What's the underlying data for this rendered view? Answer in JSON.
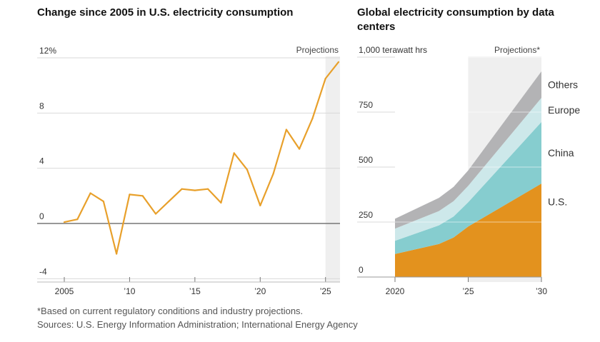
{
  "chart_data": [
    {
      "type": "line",
      "title": "Change since 2005 in U.S. electricity consumption",
      "projection_label": "Projections",
      "projection_start": 2025,
      "xlim": [
        2005,
        2026
      ],
      "ylim": [
        -4,
        12
      ],
      "y_ticks": [
        {
          "value": 12,
          "label": "12%"
        },
        {
          "value": 8,
          "label": "8"
        },
        {
          "value": 4,
          "label": "4"
        },
        {
          "value": 0,
          "label": "0"
        },
        {
          "value": -4,
          "label": "-4"
        }
      ],
      "x_ticks": [
        {
          "value": 2005,
          "label": "2005"
        },
        {
          "value": 2010,
          "label": "’10"
        },
        {
          "value": 2015,
          "label": "’15"
        },
        {
          "value": 2020,
          "label": "’20"
        },
        {
          "value": 2025,
          "label": "’25"
        }
      ],
      "series": [
        {
          "color": "#e8a02b",
          "x": [
            2005,
            2006,
            2007,
            2008,
            2009,
            2010,
            2011,
            2012,
            2013,
            2014,
            2015,
            2016,
            2017,
            2018,
            2019,
            2020,
            2021,
            2022,
            2023,
            2024,
            2025,
            2026
          ],
          "values": [
            0.1,
            0.3,
            2.2,
            1.6,
            -2.2,
            2.1,
            2.0,
            0.7,
            1.6,
            2.5,
            2.4,
            2.5,
            1.5,
            5.1,
            3.9,
            1.3,
            3.6,
            6.8,
            5.4,
            7.6,
            10.5,
            11.7
          ]
        }
      ]
    },
    {
      "type": "area",
      "stacked": true,
      "title": "Global electricity consumption by data centers",
      "ylabel": "1,000 terawatt hrs",
      "projection_label": "Projections*",
      "projection_start": 2025,
      "xlim": [
        2020,
        2030
      ],
      "ylim": [
        0,
        1000
      ],
      "y_ticks": [
        {
          "value": 1000,
          "label": "1,000 terawatt hrs"
        },
        {
          "value": 750,
          "label": "750"
        },
        {
          "value": 500,
          "label": "500"
        },
        {
          "value": 250,
          "label": "250"
        },
        {
          "value": 0,
          "label": "0"
        }
      ],
      "x_ticks": [
        {
          "value": 2020,
          "label": "2020"
        },
        {
          "value": 2025,
          "label": "’25"
        },
        {
          "value": 2030,
          "label": "’30"
        }
      ],
      "x": [
        2020,
        2023,
        2024,
        2025,
        2030
      ],
      "series": [
        {
          "name": "U.S.",
          "color": "#e3921e",
          "values": [
            105,
            150,
            180,
            230,
            425
          ]
        },
        {
          "name": "China",
          "color": "#86cdcf",
          "values": [
            60,
            85,
            95,
            110,
            280
          ]
        },
        {
          "name": "Europe",
          "color": "#cde8ea",
          "values": [
            55,
            65,
            70,
            75,
            110
          ]
        },
        {
          "name": "Others",
          "color": "#b3b3b5",
          "values": [
            45,
            60,
            65,
            70,
            120
          ]
        }
      ]
    }
  ],
  "footnote": "*Based on current regulatory conditions and industry projections.",
  "sources": "Sources: U.S. Energy Information Administration; International Energy Agency"
}
